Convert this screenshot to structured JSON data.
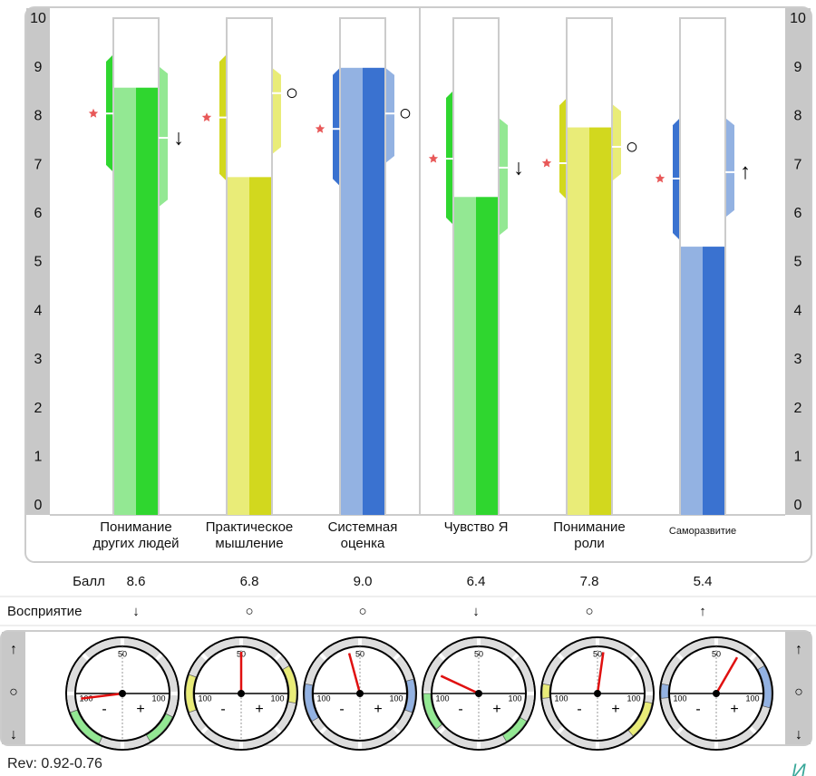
{
  "chart_data": {
    "type": "bar",
    "categories": [
      "Понимание\nдругих людей",
      "Практическое\nмышление",
      "Системная\nоценка",
      "Чувство Я",
      "Понимание\nроли",
      "Саморазвитие"
    ],
    "values": [
      8.6,
      6.8,
      9.0,
      6.4,
      7.8,
      5.4
    ],
    "value_labels": [
      "8.6",
      "6.8",
      "9.0",
      "6.4",
      "7.8",
      "5.4"
    ],
    "score_label": "Балл",
    "perception_label": "Восприятие",
    "perception": [
      "↓",
      "○",
      "○",
      "↓",
      "○",
      "↑"
    ],
    "self_values": [
      8.08,
      8.0,
      7.77,
      7.17,
      7.08,
      6.77
    ],
    "self_ranges": [
      [
        6.9,
        9.27
      ],
      [
        6.72,
        9.27
      ],
      [
        6.62,
        9.0
      ],
      [
        5.84,
        8.54
      ],
      [
        6.35,
        8.39
      ],
      [
        5.53,
        7.99
      ]
    ],
    "perception_values": [
      7.59,
      8.49,
      8.08,
      6.99,
      7.41,
      6.9
    ],
    "perception_ranges": [
      [
        6.2,
        9.03
      ],
      [
        7.26,
        9.0
      ],
      [
        7.08,
        9.0
      ],
      [
        5.62,
        7.99
      ],
      [
        6.72,
        8.27
      ],
      [
        5.99,
        7.99
      ]
    ],
    "colors": [
      [
        "#2fd62f",
        "#93e893"
      ],
      [
        "#d2d81e",
        "#e9ec78"
      ],
      [
        "#3a72d0",
        "#93b2e2"
      ],
      [
        "#2fd62f",
        "#93e893"
      ],
      [
        "#d2d81e",
        "#e9ec78"
      ],
      [
        "#3a72d0",
        "#93b2e2"
      ]
    ],
    "ylim": [
      0,
      10
    ],
    "yticks": [
      0,
      1,
      2,
      3,
      4,
      5,
      6,
      7,
      8,
      9,
      10
    ]
  },
  "gauges": {
    "symbols": [
      "↑",
      "○",
      "↓"
    ],
    "labels": {
      "left": "100",
      "top": "50",
      "right": "100",
      "minus": "-",
      "plus": "+"
    },
    "needles": [
      -97,
      0,
      -15,
      -65,
      8,
      30
    ],
    "arcs": [
      [
        [
          205,
          250
        ],
        [
          115,
          150
        ]
      ],
      [
        [
          250,
          290
        ],
        [
          60,
          100
        ]
      ],
      [
        [
          240,
          280
        ],
        [
          75,
          110
        ]
      ],
      [
        [
          230,
          270
        ],
        [
          120,
          150
        ]
      ],
      [
        [
          265,
          280
        ],
        [
          100,
          140
        ]
      ],
      [
        [
          265,
          280
        ],
        [
          60,
          105
        ]
      ]
    ]
  },
  "footer": {
    "revision": "Rev: 0.92-0.76",
    "corner": "И"
  }
}
